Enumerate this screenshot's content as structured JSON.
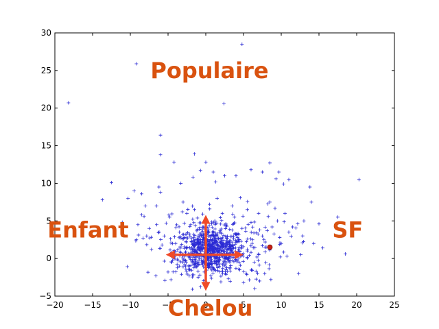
{
  "chart_data": {
    "type": "scatter",
    "title": "",
    "xlabel": "",
    "ylabel": "",
    "xlim": [
      -20,
      25
    ],
    "ylim": [
      -5,
      30
    ],
    "xticks": [
      "−20",
      "−15",
      "−10",
      "−5",
      "0",
      "5",
      "10",
      "15",
      "20",
      "25"
    ],
    "yticks": [
      "−5",
      "0",
      "5",
      "10",
      "15",
      "20",
      "25",
      "30"
    ],
    "grid": false,
    "marker": "+",
    "series_color": "#2a2ad4",
    "points": [
      [
        -18.2,
        20.7
      ],
      [
        -9.2,
        25.9
      ],
      [
        4.8,
        28.5
      ],
      [
        2.4,
        20.6
      ],
      [
        -6.0,
        16.4
      ],
      [
        -6.0,
        13.8
      ],
      [
        -1.5,
        13.9
      ],
      [
        0.0,
        12.8
      ],
      [
        -12.5,
        10.1
      ],
      [
        -13.7,
        7.8
      ],
      [
        -9.5,
        9.0
      ],
      [
        -10.3,
        8.0
      ],
      [
        -8.0,
        7.0
      ],
      [
        -8.5,
        8.6
      ],
      [
        -6.2,
        9.5
      ],
      [
        -6.0,
        8.8
      ],
      [
        -4.2,
        12.8
      ],
      [
        -3.3,
        10.0
      ],
      [
        -1.7,
        10.8
      ],
      [
        -0.7,
        11.7
      ],
      [
        1.0,
        11.5
      ],
      [
        1.3,
        10.2
      ],
      [
        2.5,
        11.0
      ],
      [
        4.0,
        11.0
      ],
      [
        6.0,
        11.8
      ],
      [
        7.5,
        11.5
      ],
      [
        8.5,
        12.7
      ],
      [
        9.3,
        10.6
      ],
      [
        9.7,
        11.5
      ],
      [
        10.3,
        9.9
      ],
      [
        11.0,
        10.5
      ],
      [
        13.8,
        9.5
      ],
      [
        14.0,
        7.5
      ],
      [
        20.3,
        10.5
      ],
      [
        17.5,
        5.5
      ],
      [
        18.5,
        0.6
      ],
      [
        15.0,
        4.6
      ],
      [
        15.5,
        1.4
      ],
      [
        14.3,
        2.0
      ],
      [
        12.8,
        2.1
      ],
      [
        12.6,
        0.5
      ],
      [
        12.3,
        -2.0
      ],
      [
        10.0,
        2.0
      ],
      [
        11.5,
        4.2
      ],
      [
        13.0,
        5.0
      ],
      [
        -4.8,
        5.5
      ],
      [
        -7.5,
        4.0
      ],
      [
        -9.0,
        4.5
      ],
      [
        -8.3,
        2.7
      ],
      [
        -9.2,
        2.5
      ],
      [
        -7.2,
        1.2
      ],
      [
        -5.0,
        -1.8
      ],
      [
        -2.2,
        -2.3
      ],
      [
        -1.0,
        -2.5
      ],
      [
        6.5,
        -4.0
      ],
      [
        5.0,
        -3.2
      ],
      [
        3.0,
        -2.7
      ],
      [
        2.0,
        -3.1
      ],
      [
        -3.0,
        7.5
      ],
      [
        -2.5,
        6.0
      ],
      [
        -1.5,
        6.5
      ],
      [
        0.5,
        7.2
      ],
      [
        1.5,
        8.0
      ],
      [
        3.5,
        7.0
      ],
      [
        5.5,
        6.5
      ],
      [
        7.0,
        6.0
      ],
      [
        8.5,
        7.5
      ],
      [
        9.5,
        5.0
      ],
      [
        10.5,
        6.0
      ],
      [
        11.0,
        3.5
      ],
      [
        -5.5,
        3.0
      ],
      [
        -6.5,
        4.5
      ],
      [
        -4.0,
        2.0
      ],
      [
        -3.5,
        3.5
      ],
      [
        -2.0,
        4.5
      ],
      [
        -1.0,
        3.0
      ],
      [
        -0.5,
        1.5
      ],
      [
        0.2,
        2.5
      ],
      [
        0.8,
        0.5
      ],
      [
        1.5,
        1.8
      ],
      [
        2.0,
        3.5
      ],
      [
        2.8,
        2.2
      ],
      [
        3.5,
        0.8
      ],
      [
        4.2,
        2.8
      ],
      [
        4.8,
        4.0
      ],
      [
        5.5,
        1.0
      ],
      [
        6.2,
        2.5
      ],
      [
        6.8,
        0.2
      ],
      [
        7.5,
        3.0
      ],
      [
        8.0,
        1.5
      ],
      [
        -3.0,
        0.5
      ],
      [
        -2.5,
        1.5
      ],
      [
        -1.8,
        -0.5
      ],
      [
        -1.2,
        0.8
      ],
      [
        -0.8,
        2.0
      ],
      [
        0.5,
        -0.8
      ],
      [
        1.0,
        -1.5
      ],
      [
        1.8,
        -0.3
      ],
      [
        2.5,
        0.3
      ],
      [
        3.2,
        -1.2
      ],
      [
        -4.5,
        0.8
      ],
      [
        -5.8,
        1.8
      ],
      [
        -3.8,
        -0.8
      ],
      [
        4.5,
        -1.5
      ],
      [
        7.8,
        -2.0
      ],
      [
        6.0,
        4.8
      ],
      [
        8.8,
        4.2
      ],
      [
        9.8,
        2.8
      ],
      [
        -2.8,
        2.8
      ],
      [
        -0.3,
        4.2
      ],
      [
        1.2,
        5.0
      ],
      [
        2.2,
        6.0
      ],
      [
        3.8,
        5.5
      ],
      [
        -1.6,
        1.2
      ],
      [
        0.1,
        0.9
      ],
      [
        0.9,
        1.3
      ],
      [
        1.6,
        0.6
      ],
      [
        -0.9,
        -0.2
      ],
      [
        0.4,
        1.8
      ],
      [
        -0.2,
        0.4
      ],
      [
        1.3,
        2.4
      ],
      [
        2.3,
        1.6
      ],
      [
        -2.1,
        0.2
      ],
      [
        3.0,
        1.9
      ]
    ],
    "highlight_point": {
      "x": 8.5,
      "y": 1.5,
      "color": "#c82014"
    },
    "axes_arrows": {
      "color": "#f04a28",
      "origin": [
        0,
        0.5
      ],
      "right": [
        5.0,
        0.5
      ],
      "left": [
        -5.3,
        0.5
      ],
      "up": [
        0,
        5.8
      ],
      "down": [
        0,
        -4.3
      ]
    },
    "annotations": [
      {
        "text": "Populaire",
        "x": 0.5,
        "y": 24.0,
        "color": "#d9520f"
      },
      {
        "text": "Enfant",
        "x": -15.6,
        "y": 2.8,
        "color": "#d9520f"
      },
      {
        "text": "SF",
        "x": 18.8,
        "y": 2.8,
        "color": "#d9520f"
      },
      {
        "text": "Chelou",
        "x": 0.6,
        "y": -7.6,
        "color": "#d9520f"
      }
    ]
  }
}
